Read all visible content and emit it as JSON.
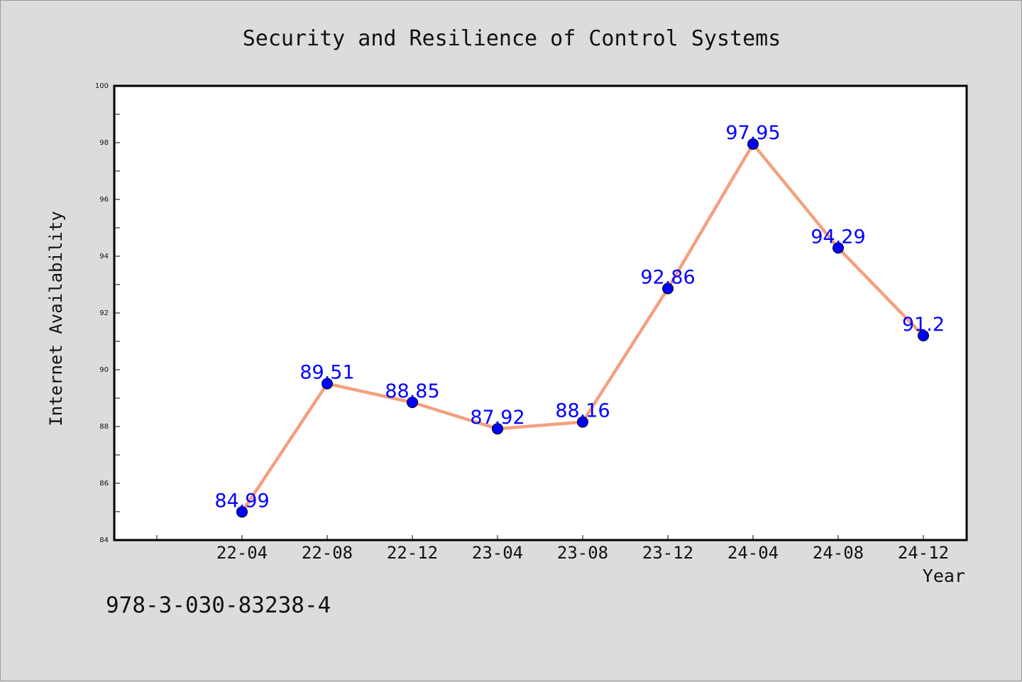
{
  "chart_data": {
    "type": "line",
    "title": "Security and Resilience of Control Systems",
    "xlabel": "Year",
    "ylabel": "Internet Availability",
    "categories": [
      "22-04",
      "22-08",
      "22-12",
      "23-04",
      "23-08",
      "23-12",
      "24-04",
      "24-08",
      "24-12"
    ],
    "values": [
      84.99,
      89.51,
      88.85,
      87.92,
      88.16,
      92.86,
      97.95,
      94.29,
      91.2
    ],
    "value_labels": [
      "84.99",
      "89.51",
      "88.85",
      "87.92",
      "88.16",
      "92.86",
      "97.95",
      "94.29",
      "91.2"
    ],
    "ylim": [
      84,
      100
    ],
    "yticks": [
      84,
      86,
      88,
      90,
      92,
      94,
      96,
      98,
      100
    ],
    "ytick_labels": [
      "84",
      "86",
      "88",
      "90",
      "92",
      "94",
      "96",
      "98",
      "100"
    ],
    "grid": false,
    "legend": "none",
    "colors": {
      "line": "#f4a07e",
      "marker": "#0000ff",
      "data_label": "#0000ff",
      "plot_background": "#ffffff",
      "figure_background": "#dcdcdc"
    }
  },
  "footer": {
    "isbn": "978-3-030-83238-4"
  }
}
